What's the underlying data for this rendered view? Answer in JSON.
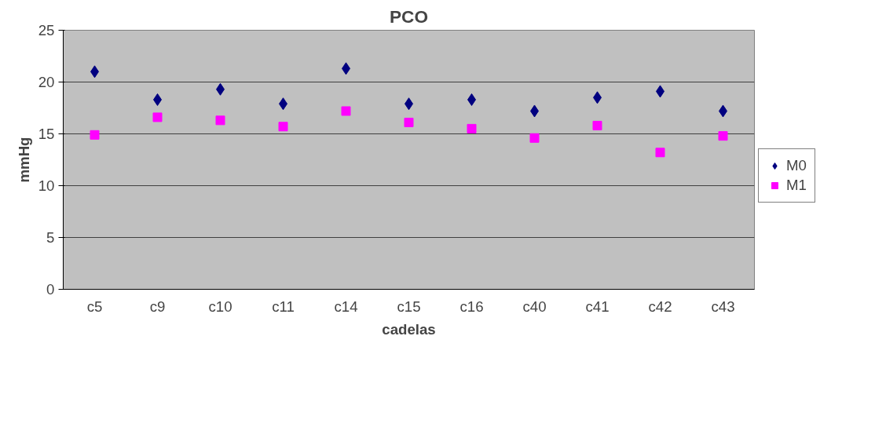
{
  "chart_data": {
    "type": "scatter",
    "title": "PCO",
    "xlabel": "cadelas",
    "ylabel": "mmHg",
    "categories": [
      "c5",
      "c9",
      "c10",
      "c11",
      "c14",
      "c15",
      "c16",
      "c40",
      "c41",
      "c42",
      "c43"
    ],
    "series": [
      {
        "name": "M0",
        "color": "#000080",
        "marker": "diamond",
        "values": [
          21.0,
          18.3,
          19.3,
          17.9,
          21.3,
          17.9,
          18.3,
          17.2,
          18.5,
          19.1,
          17.2
        ]
      },
      {
        "name": "M1",
        "color": "#ff00ff",
        "marker": "square",
        "values": [
          14.9,
          16.6,
          16.3,
          15.7,
          17.2,
          16.1,
          15.5,
          14.6,
          15.8,
          13.2,
          14.8
        ]
      }
    ],
    "ylim": [
      0,
      25
    ],
    "yticks": [
      0,
      5,
      10,
      15,
      20,
      25
    ],
    "grid": "y",
    "legend": "right"
  }
}
